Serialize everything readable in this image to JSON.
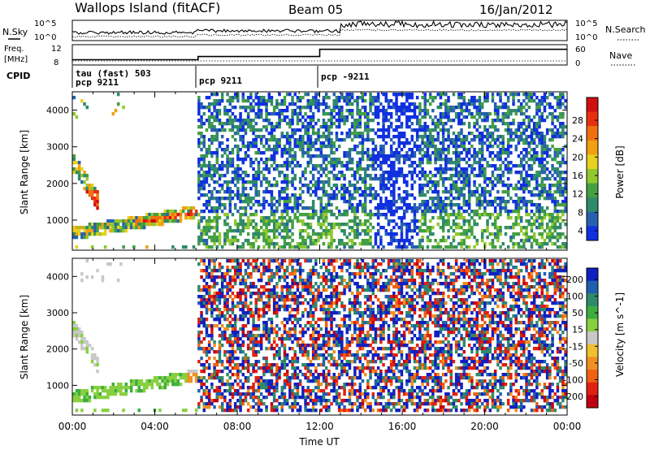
{
  "header": {
    "title": "Wallops Island (fitACF)",
    "beam": "Beam 05",
    "date": "16/Jan/2012"
  },
  "chart_data": [
    {
      "type": "line",
      "panel": "noise",
      "left_label": "N.Sky",
      "right_label": "N.Search",
      "y_ticks_left": [
        "10^5",
        "10^0"
      ],
      "y_ticks_right": [
        "10^5",
        "10^0"
      ]
    },
    {
      "type": "line",
      "panel": "frequency",
      "left_label_line1": "Freq.",
      "left_label_line2": "[MHz]",
      "right_label": "Nave",
      "y_ticks_left": [
        "12",
        "8"
      ],
      "y_ticks_right": [
        "60",
        "0"
      ],
      "frequency_steps": [
        {
          "from_hour": 0,
          "to_hour": 6.1,
          "value": 8.6
        },
        {
          "from_hour": 6.1,
          "to_hour": 12,
          "value": 9.5
        },
        {
          "from_hour": 12,
          "to_hour": 24,
          "value": 11.6
        }
      ]
    },
    {
      "type": "table",
      "panel": "cpid",
      "label": "CPID",
      "segments": [
        {
          "start_hour": 0,
          "line1": "tau (fast) 503",
          "line2": "pcp 9211"
        },
        {
          "start_hour": 6.1,
          "line1": "",
          "line2": "pcp 9211"
        },
        {
          "start_hour": 12,
          "line1": "",
          "line2": "pcp -9211"
        }
      ]
    },
    {
      "type": "heatmap",
      "panel": "power",
      "ylabel": "Slant Range [km]",
      "ylim": [
        180,
        4500
      ],
      "y_ticks": [
        1000,
        2000,
        3000,
        4000
      ],
      "colorbar_label": "Power [dB]",
      "colorbar_ticks": [
        4,
        8,
        12,
        16,
        20,
        24,
        28
      ],
      "colorbar_colors": [
        "#1030e0",
        "#2860b0",
        "#2f8a6a",
        "#44a040",
        "#90c830",
        "#e8d020",
        "#f0a010",
        "#f07010",
        "#e83010",
        "#d01010"
      ],
      "xlim": [
        0,
        24
      ],
      "x_ticks": [
        "00:00",
        "04:00",
        "08:00",
        "12:00",
        "16:00",
        "20:00",
        "00:00"
      ],
      "xlabel": "Time UT"
    },
    {
      "type": "heatmap",
      "panel": "velocity",
      "ylabel": "Slant Range [km]",
      "ylim": [
        180,
        4500
      ],
      "y_ticks": [
        1000,
        2000,
        3000,
        4000
      ],
      "colorbar_label": "Velocity [m s^-1]",
      "colorbar_ticks": [
        200,
        100,
        50,
        15,
        -15,
        -50,
        -100,
        -200
      ],
      "colorbar_colors": [
        "#1020c0",
        "#1f5fb0",
        "#2f8a6a",
        "#3cae40",
        "#88d040",
        "#c8c8c8",
        "#f0c030",
        "#f09020",
        "#f06010",
        "#e02010",
        "#c00010"
      ],
      "xlim": [
        0,
        24
      ],
      "x_ticks": [
        "00:00",
        "04:00",
        "08:00",
        "12:00",
        "16:00",
        "20:00",
        "00:00"
      ],
      "xlabel": "Time UT"
    }
  ]
}
